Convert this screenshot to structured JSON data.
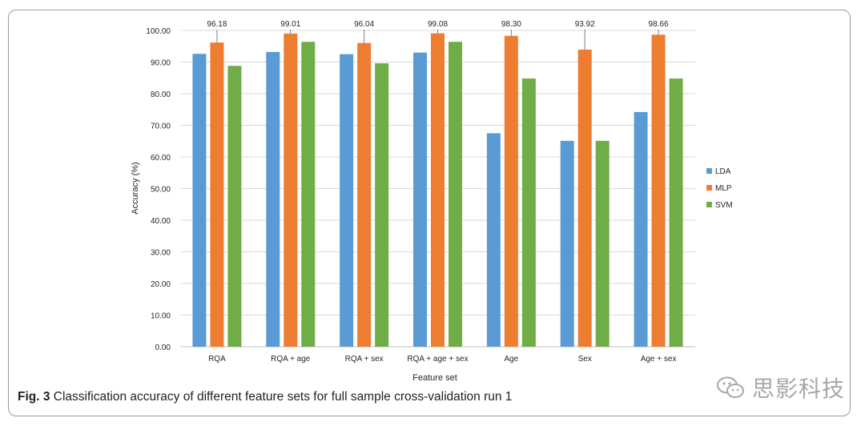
{
  "chart_data": {
    "type": "bar",
    "title": "",
    "xlabel": "Feature set",
    "ylabel": "Accuracy (%)",
    "ylim": [
      0,
      100
    ],
    "ytick_step": 10,
    "ytick_labels": [
      "0.00",
      "10.00",
      "20.00",
      "30.00",
      "40.00",
      "50.00",
      "60.00",
      "70.00",
      "80.00",
      "90.00",
      "100.00"
    ],
    "categories": [
      "RQA",
      "RQA + age",
      "RQA + sex",
      "RQA + age + sex",
      "Age",
      "Sex",
      "Age + sex"
    ],
    "series": [
      {
        "name": "LDA",
        "color": "#5b9bd5",
        "values": [
          92.6,
          93.2,
          92.5,
          93.0,
          67.5,
          65.1,
          74.2
        ]
      },
      {
        "name": "MLP",
        "color": "#ed7d31",
        "values": [
          96.18,
          99.01,
          96.04,
          99.08,
          98.3,
          93.92,
          98.66
        ]
      },
      {
        "name": "SVM",
        "color": "#70ad47",
        "values": [
          88.8,
          96.4,
          89.6,
          96.4,
          84.8,
          65.1,
          84.8
        ]
      }
    ],
    "data_labels": {
      "series": "MLP",
      "labels": [
        "96.18",
        "99.01",
        "96.04",
        "99.08",
        "98.30",
        "93.92",
        "98.66"
      ]
    },
    "legend": "right",
    "grid": true
  },
  "caption": {
    "label": "Fig. 3",
    "text": " Classification accuracy of different feature sets for full sample cross-validation run 1"
  },
  "watermark": {
    "text": "思影科技",
    "icon": "wechat-icon"
  }
}
